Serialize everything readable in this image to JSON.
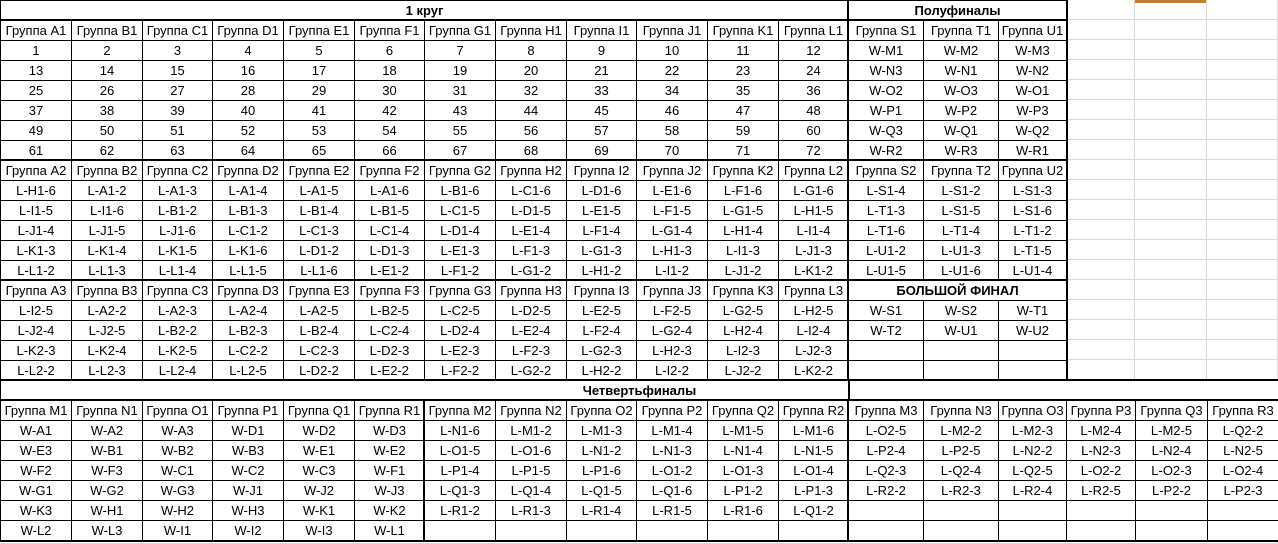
{
  "colors": {
    "grid_line": "#d9d9d9",
    "cell_border": "#000000",
    "selection_marker": "#cc7a2b"
  },
  "blocks": [
    {
      "name": "round1-title",
      "type": "title",
      "col": 1,
      "span": 12,
      "row": 1,
      "text": "1 круг"
    },
    {
      "name": "semifinals-title",
      "type": "title",
      "col": 13,
      "span": 3,
      "row": 1,
      "text": "Полуфиналы"
    },
    {
      "name": "round1-stage1",
      "type": "table",
      "col": 1,
      "row": 2,
      "headers": [
        "Группа A1",
        "Группа B1",
        "Группа C1",
        "Группа D1",
        "Группа E1",
        "Группа F1",
        "Группа G1",
        "Группа H1",
        "Группа I1",
        "Группа J1",
        "Группа K1",
        "Группа L1"
      ],
      "rows": [
        [
          1,
          2,
          3,
          4,
          5,
          6,
          7,
          8,
          9,
          10,
          11,
          12
        ],
        [
          13,
          14,
          15,
          16,
          17,
          18,
          19,
          20,
          21,
          22,
          23,
          24
        ],
        [
          25,
          26,
          27,
          28,
          29,
          30,
          31,
          32,
          33,
          34,
          35,
          36
        ],
        [
          37,
          38,
          39,
          40,
          41,
          42,
          43,
          44,
          45,
          46,
          47,
          48
        ],
        [
          49,
          50,
          51,
          52,
          53,
          54,
          55,
          56,
          57,
          58,
          59,
          60
        ],
        [
          61,
          62,
          63,
          64,
          65,
          66,
          67,
          68,
          69,
          70,
          71,
          72
        ]
      ]
    },
    {
      "name": "semifinals-stage1",
      "type": "table",
      "col": 13,
      "row": 2,
      "headers": [
        "Группа S1",
        "Группа T1",
        "Группа U1"
      ],
      "rows": [
        [
          "W-M1",
          "W-M2",
          "W-M3"
        ],
        [
          "W-N3",
          "W-N1",
          "W-N2"
        ],
        [
          "W-O2",
          "W-O3",
          "W-O1"
        ],
        [
          "W-P1",
          "W-P2",
          "W-P3"
        ],
        [
          "W-Q3",
          "W-Q1",
          "W-Q2"
        ],
        [
          "W-R2",
          "W-R3",
          "W-R1"
        ]
      ]
    },
    {
      "name": "round1-stage2",
      "type": "table",
      "col": 1,
      "row": 9,
      "headers": [
        "Группа A2",
        "Группа B2",
        "Группа C2",
        "Группа D2",
        "Группа E2",
        "Группа F2",
        "Группа G2",
        "Группа H2",
        "Группа I2",
        "Группа J2",
        "Группа K2",
        "Группа L2"
      ],
      "rows": [
        [
          "L-H1-6",
          "L-A1-2",
          "L-A1-3",
          "L-A1-4",
          "L-A1-5",
          "L-A1-6",
          "L-B1-6",
          "L-C1-6",
          "L-D1-6",
          "L-E1-6",
          "L-F1-6",
          "L-G1-6"
        ],
        [
          "L-I1-5",
          "L-I1-6",
          "L-B1-2",
          "L-B1-3",
          "L-B1-4",
          "L-B1-5",
          "L-C1-5",
          "L-D1-5",
          "L-E1-5",
          "L-F1-5",
          "L-G1-5",
          "L-H1-5"
        ],
        [
          "L-J1-4",
          "L-J1-5",
          "L-J1-6",
          "L-C1-2",
          "L-C1-3",
          "L-C1-4",
          "L-D1-4",
          "L-E1-4",
          "L-F1-4",
          "L-G1-4",
          "L-H1-4",
          "L-I1-4"
        ],
        [
          "L-K1-3",
          "L-K1-4",
          "L-K1-5",
          "L-K1-6",
          "L-D1-2",
          "L-D1-3",
          "L-E1-3",
          "L-F1-3",
          "L-G1-3",
          "L-H1-3",
          "L-I1-3",
          "L-J1-3"
        ],
        [
          "L-L1-2",
          "L-L1-3",
          "L-L1-4",
          "L-L1-5",
          "L-L1-6",
          "L-E1-2",
          "L-F1-2",
          "L-G1-2",
          "L-H1-2",
          "L-I1-2",
          "L-J1-2",
          "L-K1-2"
        ]
      ]
    },
    {
      "name": "semifinals-stage2",
      "type": "table",
      "col": 13,
      "row": 9,
      "headers": [
        "Группа S2",
        "Группа T2",
        "Группа U2"
      ],
      "rows": [
        [
          "L-S1-4",
          "L-S1-2",
          "L-S1-3"
        ],
        [
          "L-T1-3",
          "L-S1-5",
          "L-S1-6"
        ],
        [
          "L-T1-6",
          "L-T1-4",
          "L-T1-2"
        ],
        [
          "L-U1-2",
          "L-U1-3",
          "L-T1-5"
        ],
        [
          "L-U1-5",
          "L-U1-6",
          "L-U1-4"
        ]
      ]
    },
    {
      "name": "round1-stage3",
      "type": "table",
      "col": 1,
      "row": 15,
      "headers": [
        "Группа A3",
        "Группа B3",
        "Группа C3",
        "Группа D3",
        "Группа E3",
        "Группа F3",
        "Группа G3",
        "Группа H3",
        "Группа I3",
        "Группа J3",
        "Группа K3",
        "Группа L3"
      ],
      "rows": [
        [
          "L-I2-5",
          "L-A2-2",
          "L-A2-3",
          "L-A2-4",
          "L-A2-5",
          "L-B2-5",
          "L-C2-5",
          "L-D2-5",
          "L-E2-5",
          "L-F2-5",
          "L-G2-5",
          "L-H2-5"
        ],
        [
          "L-J2-4",
          "L-J2-5",
          "L-B2-2",
          "L-B2-3",
          "L-B2-4",
          "L-C2-4",
          "L-D2-4",
          "L-E2-4",
          "L-F2-4",
          "L-G2-4",
          "L-H2-4",
          "L-I2-4"
        ],
        [
          "L-K2-3",
          "L-K2-4",
          "L-K2-5",
          "L-C2-2",
          "L-C2-3",
          "L-D2-3",
          "L-E2-3",
          "L-F2-3",
          "L-G2-3",
          "L-H2-3",
          "L-I2-3",
          "L-J2-3"
        ],
        [
          "L-L2-2",
          "L-L2-3",
          "L-L2-4",
          "L-L2-5",
          "L-D2-2",
          "L-E2-2",
          "L-F2-2",
          "L-G2-2",
          "L-H2-2",
          "L-I2-2",
          "L-J2-2",
          "L-K2-2"
        ]
      ]
    },
    {
      "name": "grand-final",
      "type": "table",
      "col": 13,
      "row": 15,
      "title": "БОЛЬШОЙ ФИНАЛ",
      "rows": [
        [
          "W-S1",
          "W-S2",
          "W-T1"
        ],
        [
          "W-T2",
          "W-U1",
          "W-U2"
        ],
        [
          "",
          "",
          ""
        ],
        [
          "",
          "",
          ""
        ]
      ]
    },
    {
      "name": "quarterfinals-title",
      "type": "title",
      "col": 1,
      "span": 18,
      "row": 20,
      "text": "Четвертьфиналы",
      "divider_after_col": 12
    },
    {
      "name": "quarterfinals-m1",
      "type": "table",
      "col": 1,
      "row": 21,
      "headers": [
        "Группа M1",
        "Группа N1",
        "Группа O1",
        "Группа P1",
        "Группа Q1",
        "Группа R1"
      ],
      "rows": [
        [
          "W-A1",
          "W-A2",
          "W-A3",
          "W-D1",
          "W-D2",
          "W-D3"
        ],
        [
          "W-E3",
          "W-B1",
          "W-B2",
          "W-B3",
          "W-E1",
          "W-E2"
        ],
        [
          "W-F2",
          "W-F3",
          "W-C1",
          "W-C2",
          "W-C3",
          "W-F1"
        ],
        [
          "W-G1",
          "W-G2",
          "W-G3",
          "W-J1",
          "W-J2",
          "W-J3"
        ],
        [
          "W-K3",
          "W-H1",
          "W-H2",
          "W-H3",
          "W-K1",
          "W-K2"
        ],
        [
          "W-L2",
          "W-L3",
          "W-I1",
          "W-I2",
          "W-I3",
          "W-L1"
        ]
      ]
    },
    {
      "name": "quarterfinals-m2",
      "type": "table",
      "col": 7,
      "row": 21,
      "headers": [
        "Группа M2",
        "Группа N2",
        "Группа O2",
        "Группа P2",
        "Группа Q2",
        "Группа R2"
      ],
      "rows": [
        [
          "L-N1-6",
          "L-M1-2",
          "L-M1-3",
          "L-M1-4",
          "L-M1-5",
          "L-M1-6"
        ],
        [
          "L-O1-5",
          "L-O1-6",
          "L-N1-2",
          "L-N1-3",
          "L-N1-4",
          "L-N1-5"
        ],
        [
          "L-P1-4",
          "L-P1-5",
          "L-P1-6",
          "L-O1-2",
          "L-O1-3",
          "L-O1-4"
        ],
        [
          "L-Q1-3",
          "L-Q1-4",
          "L-Q1-5",
          "L-Q1-6",
          "L-P1-2",
          "L-P1-3"
        ],
        [
          "L-R1-2",
          "L-R1-3",
          "L-R1-4",
          "L-R1-5",
          "L-R1-6",
          "L-Q1-2"
        ],
        [
          "",
          "",
          "",
          "",
          "",
          ""
        ]
      ]
    },
    {
      "name": "quarterfinals-m3",
      "type": "table",
      "col": 13,
      "row": 21,
      "headers": [
        "Группа M3",
        "Группа N3",
        "Группа O3",
        "Группа P3",
        "Группа Q3",
        "Группа R3"
      ],
      "rows": [
        [
          "L-O2-5",
          "L-M2-2",
          "L-M2-3",
          "L-M2-4",
          "L-M2-5",
          "L-Q2-2"
        ],
        [
          "L-P2-4",
          "L-P2-5",
          "L-N2-2",
          "L-N2-3",
          "L-N2-4",
          "L-N2-5"
        ],
        [
          "L-Q2-3",
          "L-Q2-4",
          "L-Q2-5",
          "L-O2-2",
          "L-O2-3",
          "L-O2-4"
        ],
        [
          "L-R2-2",
          "L-R2-3",
          "L-R2-4",
          "L-R2-5",
          "L-P2-2",
          "L-P2-3"
        ],
        [
          "",
          "",
          "",
          "",
          "",
          ""
        ],
        [
          "",
          "",
          "",
          "",
          "",
          ""
        ]
      ]
    }
  ]
}
